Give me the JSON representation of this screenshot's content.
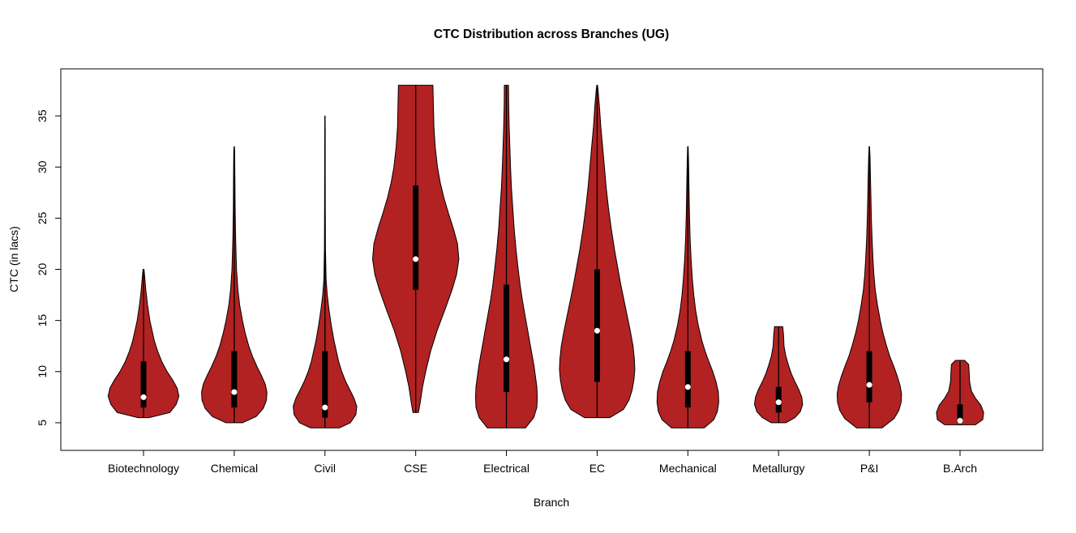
{
  "figure": {
    "background": "#ffffff"
  },
  "chart_data": {
    "type": "violin",
    "title": "CTC Distribution across Branches (UG)",
    "xlabel": "Branch",
    "ylabel": "CTC (in lacs)",
    "ylim": [
      2.3,
      39.6
    ],
    "yticks": [
      5,
      10,
      15,
      20,
      25,
      30,
      35
    ],
    "grid": false,
    "violin_fill": "#B22222",
    "violin_stroke": "#000000",
    "box_color": "#000000",
    "median_dot_color": "#ffffff",
    "categories": [
      "Biotechnology",
      "Chemical",
      "Civil",
      "CSE",
      "Electrical",
      "EC",
      "Mechanical",
      "Metallurgy",
      "P&I",
      "B.Arch"
    ],
    "violins": [
      {
        "name": "Biotechnology",
        "min": 5.5,
        "q1": 6.5,
        "median": 7.5,
        "q3": 11,
        "max": 20,
        "profile": [
          [
            5.5,
            0.12
          ],
          [
            6.0,
            0.58
          ],
          [
            6.8,
            0.72
          ],
          [
            7.6,
            0.78
          ],
          [
            8.4,
            0.74
          ],
          [
            9.2,
            0.64
          ],
          [
            10,
            0.52
          ],
          [
            11,
            0.4
          ],
          [
            12,
            0.31
          ],
          [
            13,
            0.24
          ],
          [
            14,
            0.19
          ],
          [
            15,
            0.14
          ],
          [
            16.5,
            0.09
          ],
          [
            18,
            0.05
          ],
          [
            19.3,
            0.025
          ],
          [
            20,
            0.01
          ]
        ]
      },
      {
        "name": "Chemical",
        "min": 5,
        "q1": 6.5,
        "median": 8,
        "q3": 12,
        "max": 32,
        "profile": [
          [
            5.0,
            0.18
          ],
          [
            5.6,
            0.48
          ],
          [
            6.4,
            0.64
          ],
          [
            7.2,
            0.71
          ],
          [
            8.0,
            0.72
          ],
          [
            8.8,
            0.68
          ],
          [
            9.6,
            0.6
          ],
          [
            10.5,
            0.5
          ],
          [
            11.5,
            0.4
          ],
          [
            12.5,
            0.32
          ],
          [
            13.8,
            0.24
          ],
          [
            15,
            0.18
          ],
          [
            16.5,
            0.12
          ],
          [
            18,
            0.08
          ],
          [
            20,
            0.05
          ],
          [
            23,
            0.03
          ],
          [
            26,
            0.02
          ],
          [
            29,
            0.015
          ],
          [
            31.5,
            0.01
          ],
          [
            32,
            0.004
          ]
        ]
      },
      {
        "name": "Civil",
        "min": 4.5,
        "q1": 5.5,
        "median": 6.5,
        "q3": 12,
        "max": 35,
        "profile": [
          [
            4.5,
            0.32
          ],
          [
            5.0,
            0.56
          ],
          [
            5.8,
            0.68
          ],
          [
            6.6,
            0.7
          ],
          [
            7.4,
            0.64
          ],
          [
            8.2,
            0.55
          ],
          [
            9,
            0.46
          ],
          [
            10,
            0.37
          ],
          [
            11,
            0.3
          ],
          [
            12,
            0.25
          ],
          [
            13,
            0.2
          ],
          [
            14.5,
            0.14
          ],
          [
            16,
            0.09
          ],
          [
            17.5,
            0.05
          ],
          [
            19,
            0.025
          ],
          [
            22,
            0.012
          ],
          [
            26,
            0.008
          ],
          [
            30,
            0.006
          ],
          [
            33.5,
            0.005
          ],
          [
            35,
            0.002
          ]
        ]
      },
      {
        "name": "CSE",
        "min": 6,
        "q1": 18,
        "median": 21,
        "q3": 28.2,
        "max": 38,
        "profile": [
          [
            6,
            0.06
          ],
          [
            7,
            0.1
          ],
          [
            8.5,
            0.15
          ],
          [
            10,
            0.22
          ],
          [
            12,
            0.33
          ],
          [
            14,
            0.47
          ],
          [
            16,
            0.64
          ],
          [
            18,
            0.8
          ],
          [
            19.5,
            0.9
          ],
          [
            21,
            0.95
          ],
          [
            22.5,
            0.92
          ],
          [
            24,
            0.83
          ],
          [
            25.5,
            0.72
          ],
          [
            27,
            0.62
          ],
          [
            28.5,
            0.54
          ],
          [
            30,
            0.48
          ],
          [
            32,
            0.43
          ],
          [
            34,
            0.4
          ],
          [
            36,
            0.39
          ],
          [
            38,
            0.38
          ]
        ]
      },
      {
        "name": "Electrical",
        "min": 4.5,
        "q1": 8,
        "median": 11.2,
        "q3": 18.5,
        "max": 38,
        "profile": [
          [
            4.5,
            0.42
          ],
          [
            5.5,
            0.6
          ],
          [
            6.5,
            0.67
          ],
          [
            7.5,
            0.68
          ],
          [
            8.5,
            0.67
          ],
          [
            9.5,
            0.64
          ],
          [
            10.5,
            0.61
          ],
          [
            11.5,
            0.57
          ],
          [
            12.5,
            0.53
          ],
          [
            14,
            0.47
          ],
          [
            15.5,
            0.41
          ],
          [
            17,
            0.35
          ],
          [
            18.5,
            0.3
          ],
          [
            20,
            0.26
          ],
          [
            22,
            0.21
          ],
          [
            24,
            0.17
          ],
          [
            26,
            0.14
          ],
          [
            28,
            0.11
          ],
          [
            30,
            0.09
          ],
          [
            32,
            0.075
          ],
          [
            34,
            0.06
          ],
          [
            36,
            0.05
          ],
          [
            38,
            0.045
          ]
        ]
      },
      {
        "name": "EC",
        "min": 5.5,
        "q1": 9,
        "median": 14,
        "q3": 20,
        "max": 38,
        "profile": [
          [
            5.5,
            0.28
          ],
          [
            6.3,
            0.58
          ],
          [
            7.2,
            0.7
          ],
          [
            8.2,
            0.77
          ],
          [
            9.2,
            0.81
          ],
          [
            10.2,
            0.83
          ],
          [
            11.2,
            0.82
          ],
          [
            12.5,
            0.79
          ],
          [
            14,
            0.73
          ],
          [
            15.5,
            0.66
          ],
          [
            17,
            0.59
          ],
          [
            18.5,
            0.52
          ],
          [
            20,
            0.46
          ],
          [
            22,
            0.38
          ],
          [
            24,
            0.31
          ],
          [
            26,
            0.25
          ],
          [
            28,
            0.2
          ],
          [
            30,
            0.16
          ],
          [
            32,
            0.12
          ],
          [
            34,
            0.08
          ],
          [
            36,
            0.05
          ],
          [
            37.5,
            0.02
          ],
          [
            38,
            0.008
          ]
        ]
      },
      {
        "name": "Mechanical",
        "min": 4.5,
        "q1": 6.5,
        "median": 8.5,
        "q3": 12,
        "max": 32,
        "profile": [
          [
            4.5,
            0.36
          ],
          [
            5.3,
            0.57
          ],
          [
            6.1,
            0.65
          ],
          [
            7,
            0.68
          ],
          [
            8,
            0.67
          ],
          [
            9,
            0.62
          ],
          [
            10,
            0.55
          ],
          [
            11,
            0.46
          ],
          [
            12,
            0.38
          ],
          [
            13,
            0.31
          ],
          [
            14.5,
            0.23
          ],
          [
            16,
            0.17
          ],
          [
            17.5,
            0.13
          ],
          [
            19,
            0.1
          ],
          [
            21,
            0.07
          ],
          [
            23,
            0.05
          ],
          [
            25.5,
            0.035
          ],
          [
            28,
            0.025
          ],
          [
            30.5,
            0.015
          ],
          [
            32,
            0.006
          ]
        ]
      },
      {
        "name": "Metallurgy",
        "min": 5,
        "q1": 6,
        "median": 7,
        "q3": 8.5,
        "max": 14.4,
        "profile": [
          [
            5,
            0.16
          ],
          [
            5.5,
            0.36
          ],
          [
            6.1,
            0.48
          ],
          [
            6.8,
            0.53
          ],
          [
            7.5,
            0.51
          ],
          [
            8.2,
            0.45
          ],
          [
            9,
            0.36
          ],
          [
            9.8,
            0.28
          ],
          [
            10.6,
            0.22
          ],
          [
            11.5,
            0.16
          ],
          [
            12.5,
            0.12
          ],
          [
            13.5,
            0.11
          ],
          [
            14.4,
            0.09
          ]
        ]
      },
      {
        "name": "P&I",
        "min": 4.5,
        "q1": 7,
        "median": 8.7,
        "q3": 12,
        "max": 32,
        "profile": [
          [
            4.5,
            0.28
          ],
          [
            5.4,
            0.54
          ],
          [
            6.2,
            0.65
          ],
          [
            7,
            0.7
          ],
          [
            7.8,
            0.71
          ],
          [
            8.6,
            0.68
          ],
          [
            9.5,
            0.62
          ],
          [
            10.5,
            0.54
          ],
          [
            11.5,
            0.45
          ],
          [
            12.5,
            0.38
          ],
          [
            13.8,
            0.3
          ],
          [
            15,
            0.24
          ],
          [
            16.5,
            0.18
          ],
          [
            18,
            0.13
          ],
          [
            19.5,
            0.1
          ],
          [
            21,
            0.08
          ],
          [
            23,
            0.06
          ],
          [
            25,
            0.045
          ],
          [
            27,
            0.035
          ],
          [
            29,
            0.025
          ],
          [
            31,
            0.015
          ],
          [
            32,
            0.006
          ]
        ]
      },
      {
        "name": "B.Arch",
        "min": 4.8,
        "q1": 5,
        "median": 5.2,
        "q3": 6.8,
        "max": 11.1,
        "profile": [
          [
            4.8,
            0.34
          ],
          [
            5.3,
            0.5
          ],
          [
            6,
            0.52
          ],
          [
            6.7,
            0.46
          ],
          [
            7.4,
            0.34
          ],
          [
            8.1,
            0.25
          ],
          [
            9,
            0.21
          ],
          [
            10,
            0.2
          ],
          [
            10.7,
            0.19
          ],
          [
            11.1,
            0.1
          ]
        ]
      }
    ]
  }
}
